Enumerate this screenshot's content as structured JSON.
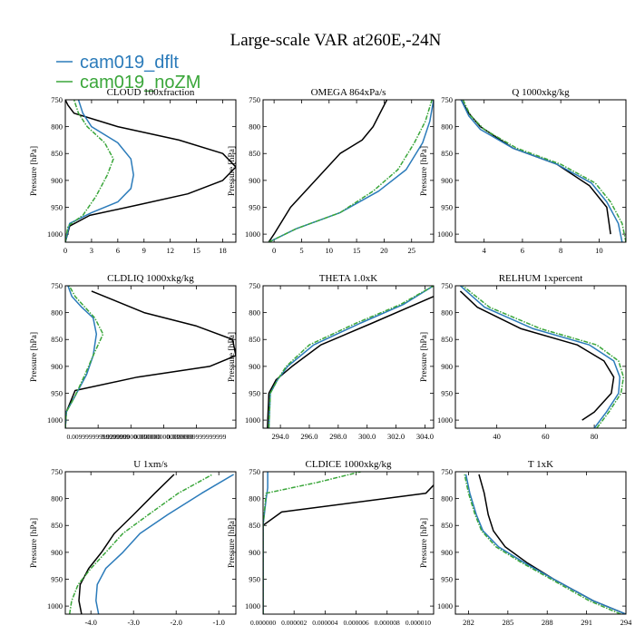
{
  "title": "Large-scale VAR at260E,-24N",
  "legend": [
    {
      "label": "cam019_dflt",
      "color": "#2b7bba"
    },
    {
      "label": "cam019_noZM",
      "color": "#3aa63a"
    }
  ],
  "chart_data": [
    {
      "type": "line",
      "title": "CLOUD 100xfraction",
      "ylabel": "Pressure [hPa]",
      "xlim": [
        0,
        19.5
      ],
      "ylim": [
        750,
        1015
      ],
      "xticks": [
        0,
        3,
        6,
        9,
        12,
        15,
        18
      ],
      "xtick_labels": [
        "0",
        "3",
        "6",
        "9",
        "12",
        "15",
        "18"
      ],
      "yticks": [
        750,
        800,
        850,
        900,
        950,
        1000
      ],
      "ytick_labels": [
        "750",
        "800",
        "850",
        "900",
        "950",
        "1000"
      ],
      "series": [
        {
          "color": "#000000",
          "x": [
            0,
            0.5,
            2.8,
            8.5,
            14,
            18,
            19.5,
            18,
            13,
            6,
            1,
            0.3,
            0
          ],
          "y": [
            1015,
            985,
            965,
            945,
            925,
            900,
            875,
            850,
            825,
            800,
            775,
            760,
            750
          ]
        },
        {
          "color": "#2b7bba",
          "x": [
            0,
            0.5,
            3,
            6,
            7.5,
            7.8,
            7.5,
            6,
            3,
            2,
            1.5
          ],
          "y": [
            1015,
            980,
            960,
            940,
            915,
            890,
            860,
            830,
            800,
            775,
            750
          ]
        },
        {
          "color": "#3aa63a",
          "x": [
            0,
            0.3,
            2,
            3.5,
            4.8,
            5.5,
            4.5,
            2.5,
            1.5,
            1
          ],
          "y": [
            1015,
            985,
            965,
            930,
            890,
            860,
            830,
            800,
            775,
            750
          ]
        }
      ]
    },
    {
      "type": "line",
      "title": "OMEGA 864xPa/s",
      "ylabel": "Pressure [hPa]",
      "xlim": [
        -2,
        29
      ],
      "ylim": [
        750,
        1015
      ],
      "xticks": [
        0,
        5,
        10,
        15,
        20,
        25
      ],
      "xtick_labels": [
        "0",
        "5",
        "10",
        "15",
        "20",
        "25"
      ],
      "yticks": [
        750,
        800,
        850,
        900,
        950,
        1000
      ],
      "ytick_labels": [
        "750",
        "800",
        "850",
        "900",
        "950",
        "1000"
      ],
      "series": [
        {
          "color": "#000000",
          "x": [
            -1,
            0,
            3,
            7.5,
            12,
            16,
            18,
            20.5
          ],
          "y": [
            1015,
            1000,
            950,
            900,
            850,
            825,
            800,
            750
          ]
        },
        {
          "color": "#2b7bba",
          "x": [
            -1,
            4,
            12,
            19,
            24,
            27,
            28.3,
            29
          ],
          "y": [
            1015,
            990,
            960,
            920,
            880,
            830,
            790,
            750
          ]
        },
        {
          "color": "#3aa63a",
          "x": [
            -1,
            4,
            12,
            18,
            22.5,
            25.5,
            27.5,
            28.7
          ],
          "y": [
            1015,
            990,
            960,
            920,
            880,
            830,
            790,
            750
          ]
        }
      ]
    },
    {
      "type": "line",
      "title": "Q 1000xkg/kg",
      "ylabel": "Pressure [hPa]",
      "xlim": [
        2.5,
        11.4
      ],
      "ylim": [
        750,
        1015
      ],
      "xticks": [
        4,
        6,
        8,
        10
      ],
      "xtick_labels": [
        "4",
        "6",
        "8",
        "10"
      ],
      "yticks": [
        750,
        800,
        850,
        900,
        950,
        1000
      ],
      "ytick_labels": [
        "750",
        "800",
        "850",
        "900",
        "950",
        "1000"
      ],
      "series": [
        {
          "color": "#000000",
          "x": [
            10.6,
            10.4,
            9.5,
            7.8,
            5.5,
            3.8,
            3.2,
            2.8
          ],
          "y": [
            1000,
            950,
            910,
            870,
            840,
            800,
            775,
            750
          ]
        },
        {
          "color": "#2b7bba",
          "x": [
            11.2,
            11.0,
            10.4,
            9.6,
            7.8,
            5.5,
            3.8,
            3.2,
            2.8
          ],
          "y": [
            1015,
            980,
            940,
            905,
            870,
            840,
            805,
            780,
            750
          ]
        },
        {
          "color": "#3aa63a",
          "x": [
            11.4,
            11.2,
            10.6,
            9.8,
            8.0,
            5.7,
            4.0,
            3.3,
            2.9
          ],
          "y": [
            1015,
            980,
            940,
            905,
            870,
            840,
            805,
            780,
            750
          ]
        }
      ]
    },
    {
      "type": "line",
      "title": "CLDLIQ 1000xkg/kg",
      "ylabel": "Pressure [hPa]",
      "xlim": [
        0,
        0.052
      ],
      "ylim": [
        750,
        1015
      ],
      "xticks": [
        0.01,
        0.02,
        0.03,
        0.04
      ],
      "xtick_labels": [
        "0.00999999999999999",
        "0.0200000000000000",
        "0.0300000000000000",
        "0.0399999999999999"
      ],
      "yticks": [
        750,
        800,
        850,
        900,
        950,
        1000
      ],
      "ytick_labels": [
        "750",
        "800",
        "850",
        "900",
        "950",
        "1000"
      ],
      "series": [
        {
          "color": "#000000",
          "x": [
            0,
            0.0003,
            0.003,
            0.022,
            0.044,
            0.052,
            0.051,
            0.04,
            0.024,
            0.008
          ],
          "y": [
            1015,
            985,
            945,
            920,
            900,
            880,
            850,
            825,
            800,
            760
          ]
        },
        {
          "color": "#2b7bba",
          "x": [
            0,
            0.0003,
            0.003,
            0.0065,
            0.0085,
            0.0095,
            0.0085,
            0.005,
            0.002,
            0.0008
          ],
          "y": [
            1015,
            985,
            955,
            915,
            880,
            840,
            810,
            790,
            770,
            750
          ]
        },
        {
          "color": "#3aa63a",
          "x": [
            0,
            0.0003,
            0.003,
            0.006,
            0.0085,
            0.0115,
            0.009,
            0.006,
            0.003,
            0.0012
          ],
          "y": [
            1015,
            985,
            955,
            915,
            880,
            840,
            810,
            790,
            770,
            750
          ]
        }
      ]
    },
    {
      "type": "line",
      "title": "THETA 1.0xK",
      "ylabel": "Pressure [hPa]",
      "xlim": [
        292.8,
        304.6
      ],
      "ylim": [
        750,
        1015
      ],
      "xticks": [
        294,
        296,
        298,
        300,
        302,
        304
      ],
      "xtick_labels": [
        "294.0",
        "296.0",
        "298.0",
        "300.0",
        "302.0",
        "304.0"
      ],
      "yticks": [
        750,
        800,
        850,
        900,
        950,
        1000
      ],
      "ytick_labels": [
        "750",
        "800",
        "850",
        "900",
        "950",
        "1000"
      ],
      "series": [
        {
          "color": "#000000",
          "x": [
            293.1,
            293.2,
            293.7,
            294.8,
            296.8,
            300.3,
            304.6
          ],
          "y": [
            1015,
            950,
            925,
            900,
            860,
            820,
            770
          ]
        },
        {
          "color": "#2b7bba",
          "x": [
            293.2,
            293.3,
            293.8,
            294.5,
            296.3,
            299.5,
            302.5,
            304.6
          ],
          "y": [
            1015,
            950,
            925,
            900,
            860,
            820,
            785,
            750
          ]
        },
        {
          "color": "#3aa63a",
          "x": [
            293.2,
            293.3,
            293.8,
            294.4,
            296.0,
            299.2,
            302.3,
            304.6
          ],
          "y": [
            1015,
            950,
            925,
            900,
            860,
            820,
            785,
            750
          ]
        }
      ]
    },
    {
      "type": "line",
      "title": "RELHUM 1xpercent",
      "ylabel": "Pressure [hPa]",
      "xlim": [
        23,
        93
      ],
      "ylim": [
        750,
        1015
      ],
      "xticks": [
        40,
        60,
        80
      ],
      "xtick_labels": [
        "40",
        "60",
        "80"
      ],
      "yticks": [
        750,
        800,
        850,
        900,
        950,
        1000
      ],
      "ytick_labels": [
        "750",
        "800",
        "850",
        "900",
        "950",
        "1000"
      ],
      "series": [
        {
          "color": "#000000",
          "x": [
            75,
            80,
            87,
            88,
            84,
            73,
            50,
            32,
            25
          ],
          "y": [
            1000,
            985,
            950,
            920,
            890,
            860,
            830,
            790,
            760
          ]
        },
        {
          "color": "#2b7bba",
          "x": [
            80,
            85,
            90,
            90.5,
            88,
            78,
            55,
            35,
            25
          ],
          "y": [
            1015,
            985,
            950,
            920,
            890,
            860,
            830,
            790,
            750
          ]
        },
        {
          "color": "#3aa63a",
          "x": [
            81,
            86,
            91,
            92,
            90,
            81,
            58,
            37,
            26
          ],
          "y": [
            1015,
            985,
            950,
            920,
            890,
            860,
            830,
            790,
            750
          ]
        }
      ]
    },
    {
      "type": "line",
      "title": "U 1xm/s",
      "ylabel": "Pressure [hPa]",
      "xlim": [
        -4.6,
        -0.6
      ],
      "ylim": [
        750,
        1015
      ],
      "xticks": [
        -4,
        -3,
        -2,
        -1
      ],
      "xtick_labels": [
        "-4.0",
        "-3.0",
        "-2.0",
        "-1.0"
      ],
      "yticks": [
        750,
        800,
        850,
        900,
        950,
        1000
      ],
      "ytick_labels": [
        "750",
        "800",
        "850",
        "900",
        "950",
        "1000"
      ],
      "series": [
        {
          "color": "#000000",
          "x": [
            -4.22,
            -4.28,
            -4.25,
            -4.05,
            -3.75,
            -3.45,
            -3.0,
            -2.5,
            -2.05
          ],
          "y": [
            1015,
            990,
            960,
            930,
            900,
            865,
            830,
            790,
            755
          ]
        },
        {
          "color": "#2b7bba",
          "x": [
            -3.82,
            -3.88,
            -3.85,
            -3.65,
            -3.25,
            -2.85,
            -2.2,
            -1.4,
            -0.65
          ],
          "y": [
            1015,
            990,
            960,
            930,
            900,
            865,
            830,
            790,
            755
          ]
        },
        {
          "color": "#3aa63a",
          "x": [
            -4.5,
            -4.45,
            -4.3,
            -4.0,
            -3.65,
            -3.25,
            -2.65,
            -1.95,
            -1.15
          ],
          "y": [
            1015,
            990,
            960,
            930,
            900,
            865,
            830,
            790,
            755
          ]
        }
      ]
    },
    {
      "type": "line",
      "title": "CLDICE 1000xkg/kg",
      "ylabel": "Pressure [hPa]",
      "xlim": [
        0,
        1.1e-05
      ],
      "ylim": [
        750,
        1015
      ],
      "xticks": [
        0,
        2e-06,
        4e-06,
        6e-06,
        8e-06,
        1e-05
      ],
      "xtick_labels": [
        "0.000000",
        "0.000002",
        "0.000004",
        "0.000006",
        "0.000008",
        "0.000010"
      ],
      "yticks": [
        750,
        800,
        850,
        900,
        950,
        1000
      ],
      "ytick_labels": [
        "750",
        "800",
        "850",
        "900",
        "950",
        "1000"
      ],
      "series": [
        {
          "color": "#000000",
          "x": [
            0,
            0,
            0,
            1.2e-06,
            1.05e-05,
            1.1e-05
          ],
          "y": [
            1015,
            900,
            850,
            825,
            790,
            775
          ]
        },
        {
          "color": "#2b7bba",
          "x": [
            0,
            0,
            2e-07,
            3e-07,
            3e-07
          ],
          "y": [
            1015,
            850,
            800,
            780,
            750
          ]
        },
        {
          "color": "#3aa63a",
          "x": [
            0,
            0,
            2e-07,
            3.5e-06,
            6.3e-06
          ],
          "y": [
            1015,
            850,
            790,
            770,
            750
          ]
        }
      ]
    },
    {
      "type": "line",
      "title": "T 1xK",
      "ylabel": "Pressure [hPa]",
      "xlim": [
        281,
        294
      ],
      "ylim": [
        750,
        1015
      ],
      "xticks": [
        282,
        285,
        288,
        291,
        294
      ],
      "xtick_labels": [
        "282",
        "285",
        "288",
        "291",
        "294"
      ],
      "yticks": [
        750,
        800,
        850,
        900,
        950,
        1000
      ],
      "ytick_labels": [
        "750",
        "800",
        "850",
        "900",
        "950",
        "1000"
      ],
      "series": [
        {
          "color": "#000000",
          "x": [
            294,
            291.5,
            288.5,
            286.5,
            284.8,
            283.9,
            283.5,
            283.2,
            282.8
          ],
          "y": [
            1015,
            990,
            950,
            920,
            890,
            860,
            830,
            790,
            755
          ]
        },
        {
          "color": "#2b7bba",
          "x": [
            294,
            291.5,
            288.5,
            286.3,
            284.3,
            283.1,
            282.6,
            282.1,
            281.8
          ],
          "y": [
            1015,
            990,
            950,
            920,
            890,
            860,
            830,
            790,
            755
          ]
        },
        {
          "color": "#3aa63a",
          "x": [
            293.6,
            291.2,
            288.3,
            286.1,
            284.1,
            283.0,
            282.5,
            282.0,
            281.7
          ],
          "y": [
            1015,
            990,
            950,
            920,
            890,
            860,
            830,
            790,
            755
          ]
        }
      ]
    }
  ]
}
